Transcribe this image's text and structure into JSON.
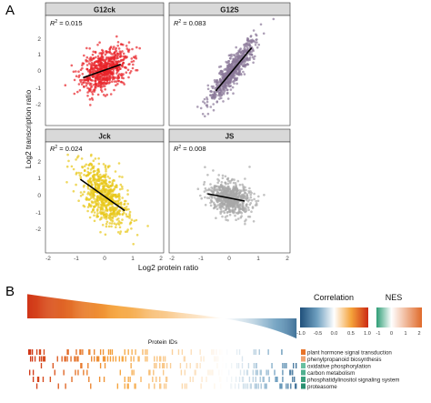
{
  "panel_letters": {
    "a": "A",
    "b": "B"
  },
  "panel_a": {
    "x_axis_label": "Log2 protein ratio",
    "y_axis_label": "Log2 transcription ratio",
    "x_ticks": [
      "-2",
      "-1",
      "0",
      "1",
      "2"
    ],
    "y_ticks": [
      "2",
      "1",
      "0",
      "-1",
      "-2"
    ],
    "facets": [
      {
        "title": "G12ck",
        "r2_prefix": "R",
        "r2_sup": "2",
        "r2_value": " = 0.015",
        "color": "#e8232a"
      },
      {
        "title": "G12S",
        "r2_prefix": "R",
        "r2_sup": "2",
        "r2_value": " = 0.083",
        "color": "#8a7898"
      },
      {
        "title": "Jck",
        "r2_prefix": "R",
        "r2_sup": "2",
        "r2_value": " = 0.024",
        "color": "#e8c81a"
      },
      {
        "title": "JS",
        "r2_prefix": "R",
        "r2_sup": "2",
        "r2_value": " = 0.008",
        "color": "#a8a8a8"
      }
    ]
  },
  "panel_b": {
    "protein_ids_label": "Protein IDs",
    "correlation_legend": {
      "title": "Correlation",
      "ticks": [
        "-1.0",
        "-0.5",
        "0.0",
        "0.5",
        "1.0"
      ]
    },
    "nes_legend": {
      "title": "NES",
      "ticks": [
        "-1",
        "0",
        "1",
        "2"
      ]
    },
    "pathways": [
      {
        "label": "plant hormone signal transduction",
        "color": "#e8742a"
      },
      {
        "label": "phenylpropanoid biosynthesis",
        "color": "#f0a472"
      },
      {
        "label": "oxidative phosphorylation",
        "color": "#68c0a0"
      },
      {
        "label": "carbon metabolism",
        "color": "#50b090"
      },
      {
        "label": "phosphatidylinositol signaling system",
        "color": "#3aa07e"
      },
      {
        "label": "proteasome",
        "color": "#2a9070"
      }
    ]
  },
  "chart_data": [
    {
      "type": "scatter",
      "title": "G12ck",
      "annotation": "R2 = 0.015",
      "xlabel": "Log2 protein ratio",
      "ylabel": "Log2 transcription ratio",
      "xlim": [
        -2.2,
        2.2
      ],
      "ylim": [
        -2.3,
        2.3
      ],
      "point_cloud": {
        "center": [
          0.0,
          0.0
        ],
        "sd": [
          0.45,
          0.45
        ]
      },
      "fit_line": {
        "x": [
          -0.8,
          0.6
        ],
        "y": [
          -0.3,
          0.25
        ]
      }
    },
    {
      "type": "scatter",
      "title": "G12S",
      "annotation": "R2 = 0.083",
      "xlabel": "Log2 protein ratio",
      "ylabel": "Log2 transcription ratio",
      "xlim": [
        -2.2,
        2.2
      ],
      "ylim": [
        -2.3,
        2.3
      ],
      "point_cloud": {
        "center": [
          0.1,
          0.0
        ],
        "sd": [
          0.42,
          0.65
        ]
      },
      "fit_line": {
        "x": [
          -0.5,
          0.8
        ],
        "y": [
          -0.85,
          0.95
        ]
      }
    },
    {
      "type": "scatter",
      "title": "Jck",
      "annotation": "R2 = 0.024",
      "xlabel": "Log2 protein ratio",
      "ylabel": "Log2 transcription ratio",
      "xlim": [
        -2.2,
        2.2
      ],
      "ylim": [
        -2.3,
        2.3
      ],
      "point_cloud": {
        "center": [
          0.0,
          0.05
        ],
        "sd": [
          0.45,
          0.65
        ]
      },
      "fit_line": {
        "x": [
          -0.9,
          0.75
        ],
        "y": [
          0.75,
          -0.55
        ]
      }
    },
    {
      "type": "scatter",
      "title": "JS",
      "annotation": "R2 = 0.008",
      "xlabel": "Log2 protein ratio",
      "ylabel": "Log2 transcription ratio",
      "xlim": [
        -2.2,
        2.2
      ],
      "ylim": [
        -2.3,
        2.3
      ],
      "point_cloud": {
        "center": [
          0.0,
          0.0
        ],
        "sd": [
          0.38,
          0.35
        ]
      },
      "fit_line": {
        "x": [
          -0.8,
          0.55
        ],
        "y": [
          0.15,
          -0.15
        ]
      }
    }
  ]
}
